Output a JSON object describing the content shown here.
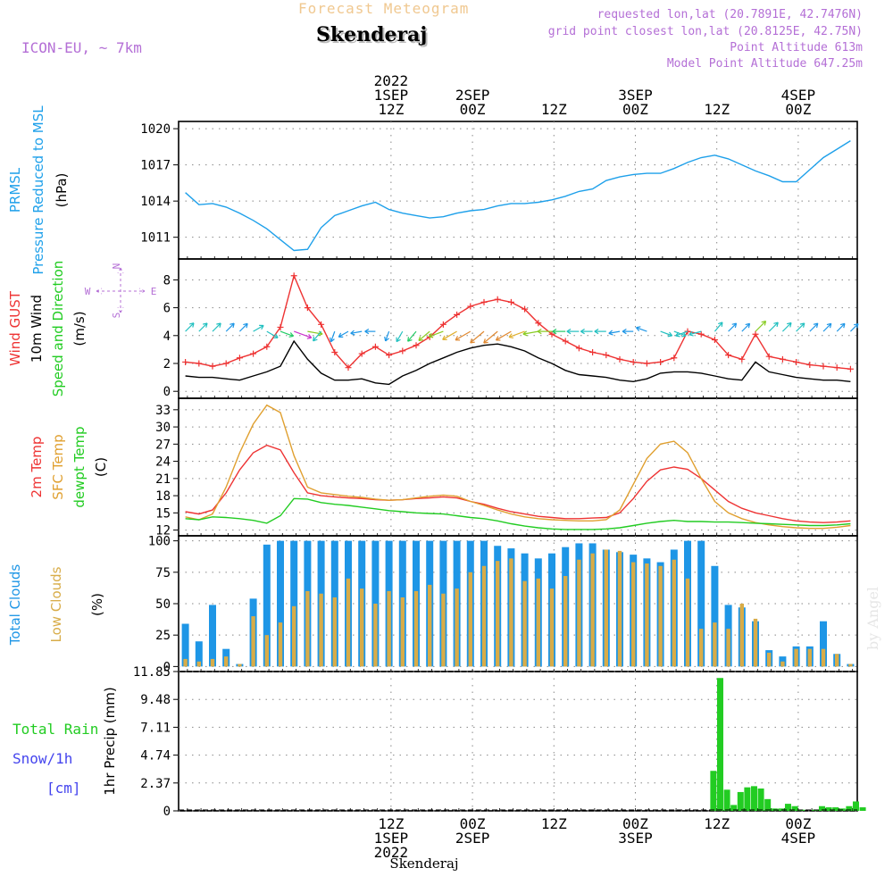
{
  "header": {
    "title": "Forecast Meteogram",
    "location": "Skenderaj",
    "model": "ICON-EU, ~ 7km",
    "requested": "requested lon,lat (20.7891E, 42.7476N)",
    "grid_point": "grid point closest lon,lat (20.8125E, 42.75N)",
    "point_altitude": "Point Altitude 613m",
    "model_altitude": "Model Point Altitude 647.25m",
    "credit": "by Angel",
    "bottom_label": "Skenderaj"
  },
  "colors": {
    "pressure": "#1ea0ea",
    "gust": "#ee3333",
    "wind": "#000000",
    "temp2m": "#ee3333",
    "sfc": "#e0a030",
    "dewpt": "#22cc22",
    "total_clouds": "#1e96e6",
    "low_clouds": "#d8ac48",
    "rain": "#22cc22",
    "snow": "#4444ee",
    "compass": "#b46fd6"
  },
  "time_axis": {
    "top": [
      {
        "x": 31.3,
        "lines": [
          "2022",
          "1SEP",
          "12Z"
        ]
      },
      {
        "x": 43.3,
        "lines": [
          "2SEP",
          "00Z"
        ]
      },
      {
        "x": 55.3,
        "lines": [
          "12Z"
        ]
      },
      {
        "x": 67.3,
        "lines": [
          "3SEP",
          "00Z"
        ]
      },
      {
        "x": 79.3,
        "lines": [
          "12Z"
        ]
      },
      {
        "x": 91.3,
        "lines": [
          "4SEP",
          "00Z"
        ]
      }
    ],
    "bottom": [
      {
        "x": 31.3,
        "lines": [
          "12Z",
          "1SEP",
          "2022"
        ]
      },
      {
        "x": 43.3,
        "lines": [
          "00Z",
          "2SEP"
        ]
      },
      {
        "x": 55.3,
        "lines": [
          "12Z"
        ]
      },
      {
        "x": 67.3,
        "lines": [
          "00Z",
          "3SEP"
        ]
      },
      {
        "x": 79.3,
        "lines": [
          "12Z"
        ]
      },
      {
        "x": 91.3,
        "lines": [
          "00Z",
          "4SEP"
        ]
      }
    ]
  },
  "panel_labels": {
    "pressure": [
      {
        "text": "PRMSL",
        "color": "pressure"
      },
      {
        "text": "Pressure Reduced to MSL",
        "color": "pressure"
      },
      {
        "text": "(hPa)",
        "color": "wind"
      }
    ],
    "wind": [
      {
        "text": "Wind GUST",
        "color": "gust"
      },
      {
        "text": "10m Wind",
        "color": "wind"
      },
      {
        "text": "Speed and Direction",
        "color": "dewpt"
      },
      {
        "text": "(m/s)",
        "color": "wind"
      }
    ],
    "temp": [
      {
        "text": "2m Temp",
        "color": "temp2m"
      },
      {
        "text": "SFC Temp",
        "color": "sfc"
      },
      {
        "text": "dewpt Temp",
        "color": "dewpt"
      },
      {
        "text": "(C)",
        "color": "wind"
      }
    ],
    "clouds": [
      {
        "text": "Total Clouds",
        "color": "total_clouds"
      },
      {
        "text": "Low Clouds",
        "color": "low_clouds"
      },
      {
        "text": "(%)",
        "color": "wind"
      }
    ],
    "precip_left": [
      {
        "text": "Total  Rain",
        "color": "rain"
      },
      {
        "text": "Snow/1h",
        "color": "snow"
      },
      {
        "text": "[cm]",
        "color": "snow"
      }
    ],
    "precip_axis": "1hr Precip (mm)"
  },
  "compass": {
    "n": "N",
    "s": "S",
    "w": "W",
    "e": "E"
  },
  "chart_data": {
    "type": "meteogram",
    "x": [
      1,
      3,
      5,
      7,
      9,
      11,
      13,
      15,
      17,
      19,
      21,
      23,
      25,
      27,
      29,
      31,
      33,
      35,
      37,
      39,
      41,
      43,
      45,
      47,
      49,
      51,
      53,
      55,
      57,
      59,
      61,
      63,
      65,
      67,
      69,
      71,
      73,
      75,
      77,
      79,
      81,
      83,
      85,
      87,
      89,
      91,
      93,
      95,
      97,
      99
    ],
    "panels": [
      {
        "name": "pressure",
        "y_ticks": [
          1011,
          1014,
          1017,
          1020
        ],
        "ylim": [
          1009.2,
          1020.6
        ],
        "series": [
          {
            "label": "PRMSL",
            "values": [
              1014.7,
              1013.7,
              1013.8,
              1013.5,
              1013.0,
              1012.4,
              1011.7,
              1010.8,
              1009.9,
              1010.0,
              1011.8,
              1012.8,
              1013.2,
              1013.6,
              1013.9,
              1013.3,
              1013.0,
              1012.8,
              1012.6,
              1012.7,
              1013.0,
              1013.2,
              1013.3,
              1013.6,
              1013.8,
              1013.8,
              1013.9,
              1014.1,
              1014.4,
              1014.8,
              1015.0,
              1015.7,
              1016.0,
              1016.2,
              1016.3,
              1016.3,
              1016.7,
              1017.2,
              1017.6,
              1017.8,
              1017.5,
              1017.0,
              1016.5,
              1016.1,
              1015.6,
              1015.6,
              1016.6,
              1017.6,
              1018.3,
              1019.0
            ]
          }
        ]
      },
      {
        "name": "wind",
        "y_ticks": [
          0,
          2,
          4,
          6,
          8
        ],
        "ylim": [
          -0.5,
          9.5
        ],
        "series": [
          {
            "label": "Wind GUST",
            "values": [
              2.1,
              2.0,
              1.8,
              2.0,
              2.4,
              2.7,
              3.2,
              4.6,
              8.3,
              6.0,
              4.8,
              2.8,
              1.7,
              2.7,
              3.2,
              2.6,
              2.9,
              3.3,
              3.9,
              4.8,
              5.5,
              6.1,
              6.4,
              6.6,
              6.4,
              5.9,
              4.9,
              4.1,
              3.6,
              3.1,
              2.8,
              2.6,
              2.3,
              2.1,
              2.0,
              2.1,
              2.4,
              4.3,
              4.1,
              3.7,
              2.6,
              2.3,
              4.1,
              2.5,
              2.3,
              2.1,
              1.9,
              1.8,
              1.7,
              1.6
            ]
          },
          {
            "label": "10m Wind",
            "values": [
              1.1,
              1.0,
              1.0,
              0.9,
              0.8,
              1.1,
              1.4,
              1.8,
              3.6,
              2.3,
              1.3,
              0.8,
              0.8,
              0.9,
              0.6,
              0.5,
              1.1,
              1.5,
              2.0,
              2.4,
              2.8,
              3.1,
              3.3,
              3.4,
              3.2,
              2.9,
              2.4,
              2.0,
              1.5,
              1.2,
              1.1,
              1.0,
              0.8,
              0.7,
              0.9,
              1.3,
              1.4,
              1.4,
              1.3,
              1.1,
              0.9,
              0.8,
              2.1,
              1.4,
              1.2,
              1.0,
              0.9,
              0.8,
              0.8,
              0.7
            ]
          }
        ]
      },
      {
        "name": "temp",
        "y_ticks": [
          12,
          15,
          18,
          21,
          24,
          27,
          30,
          33
        ],
        "ylim": [
          11,
          35
        ],
        "series": [
          {
            "label": "2m Temp",
            "values": [
              15.2,
              14.8,
              15.5,
              18.5,
              22.5,
              25.5,
              26.8,
              26.0,
              22.0,
              18.5,
              18.0,
              17.8,
              17.6,
              17.5,
              17.3,
              17.2,
              17.3,
              17.5,
              17.6,
              17.8,
              17.6,
              17.0,
              16.5,
              15.8,
              15.2,
              14.8,
              14.4,
              14.2,
              14.0,
              14.0,
              14.1,
              14.2,
              15.0,
              17.5,
              20.5,
              22.5,
              23.0,
              22.6,
              21.0,
              19.0,
              17.0,
              15.8,
              15.0,
              14.5,
              14.0,
              13.6,
              13.4,
              13.3,
              13.4,
              13.6
            ]
          },
          {
            "label": "SFC Temp",
            "values": [
              14.3,
              13.8,
              14.8,
              19.5,
              25.5,
              30.5,
              33.8,
              32.5,
              25.0,
              19.5,
              18.5,
              18.2,
              17.9,
              17.7,
              17.4,
              17.2,
              17.3,
              17.6,
              17.9,
              18.1,
              17.9,
              17.0,
              16.3,
              15.5,
              14.8,
              14.3,
              14.0,
              13.8,
              13.7,
              13.6,
              13.6,
              13.8,
              15.5,
              20.0,
              24.5,
              27.0,
              27.5,
              25.5,
              21.0,
              17.0,
              15.0,
              14.0,
              13.3,
              12.9,
              12.6,
              12.4,
              12.3,
              12.3,
              12.5,
              12.8
            ]
          },
          {
            "label": "dewpt Temp",
            "values": [
              14.0,
              13.8,
              14.3,
              14.2,
              14.0,
              13.7,
              13.2,
              14.5,
              17.5,
              17.4,
              16.8,
              16.5,
              16.3,
              16.0,
              15.7,
              15.4,
              15.2,
              15.0,
              14.9,
              14.8,
              14.5,
              14.2,
              14.0,
              13.6,
              13.1,
              12.7,
              12.4,
              12.2,
              12.1,
              12.1,
              12.1,
              12.2,
              12.4,
              12.8,
              13.2,
              13.5,
              13.7,
              13.5,
              13.5,
              13.4,
              13.4,
              13.3,
              13.2,
              13.1,
              13.0,
              12.9,
              12.8,
              12.8,
              12.9,
              13.1
            ]
          }
        ]
      },
      {
        "name": "clouds",
        "y_ticks": [
          0,
          25,
          50,
          75,
          100
        ],
        "ylim": [
          -4,
          104
        ],
        "series": [
          {
            "label": "Total Clouds",
            "values": [
              34,
              20,
              49,
              14,
              2,
              54,
              97,
              100,
              100,
              100,
              100,
              100,
              100,
              100,
              100,
              100,
              100,
              100,
              100,
              100,
              100,
              100,
              100,
              96,
              94,
              90,
              86,
              90,
              95,
              98,
              98,
              93,
              91,
              89,
              86,
              83,
              93,
              100,
              100,
              80,
              49,
              47,
              36,
              13,
              8,
              16,
              16,
              36,
              10,
              2
            ]
          },
          {
            "label": "Low Clouds",
            "values": [
              6,
              4,
              6,
              8,
              2,
              40,
              25,
              35,
              48,
              60,
              58,
              55,
              70,
              62,
              50,
              60,
              55,
              60,
              65,
              58,
              62,
              75,
              80,
              84,
              86,
              68,
              70,
              62,
              72,
              85,
              90,
              93,
              92,
              83,
              82,
              80,
              85,
              70,
              30,
              35,
              30,
              50,
              38,
              11,
              4,
              14,
              14,
              14,
              10,
              2
            ]
          }
        ]
      },
      {
        "name": "precip",
        "y_ticks": [
          0,
          2.37,
          4.74,
          7.11,
          9.48,
          11.85
        ],
        "y_tick_labels": [
          "0",
          "2.37",
          "4.74",
          "7.11",
          "9.48",
          "11.85"
        ],
        "ylim": [
          0,
          11.85
        ],
        "series": [
          {
            "label": "Total Rain",
            "values": [
              0,
              0,
              0,
              0,
              0,
              0,
              0,
              0,
              0,
              0,
              0,
              0,
              0,
              0,
              0,
              0,
              0,
              0,
              0,
              0,
              0,
              0,
              0,
              0,
              0,
              0,
              0,
              0,
              0,
              0,
              0,
              0,
              0,
              0,
              0,
              0,
              0,
              0,
              0,
              0,
              0,
              0,
              0,
              0,
              0,
              0,
              0,
              0,
              0,
              0
            ]
          }
        ]
      }
    ],
    "precip_bars": {
      "x": [
        59.5,
        60.5,
        61.5,
        62.5,
        63.5,
        64.5,
        65.5,
        66.5,
        67.5,
        68.5,
        69.5,
        70.5,
        71.5,
        72.5,
        73.5,
        74.5,
        75.5,
        76.5,
        77.5,
        78.5,
        79.5,
        80.5,
        81.5,
        82.5,
        83.5,
        84.5,
        85.5,
        86.5,
        87.5,
        88.5,
        89.5,
        90.5,
        91.5
      ],
      "xnote": "hours since 1SEP 00Z",
      "values": [
        3.4,
        11.3,
        1.8,
        0.5,
        1.6,
        2.0,
        2.1,
        1.9,
        1.0,
        0.2,
        0.2,
        0.6,
        0.4,
        0.1,
        0,
        0.1,
        0.4,
        0.3,
        0.3,
        0.2,
        0.4,
        0.8,
        0.3,
        0,
        0,
        0,
        0,
        0,
        0,
        0,
        0,
        0,
        0
      ]
    },
    "wind_barbs_dir_deg": [
      45,
      45,
      45,
      45,
      45,
      60,
      120,
      110,
      110,
      100,
      220,
      200,
      240,
      260,
      270,
      200,
      210,
      220,
      230,
      250,
      240,
      240,
      230,
      230,
      240,
      250,
      260,
      270,
      270,
      270,
      270,
      270,
      260,
      270,
      290,
      110,
      110,
      250,
      255,
      40,
      45,
      45,
      45,
      45,
      45,
      45,
      45,
      45,
      45,
      45
    ]
  }
}
